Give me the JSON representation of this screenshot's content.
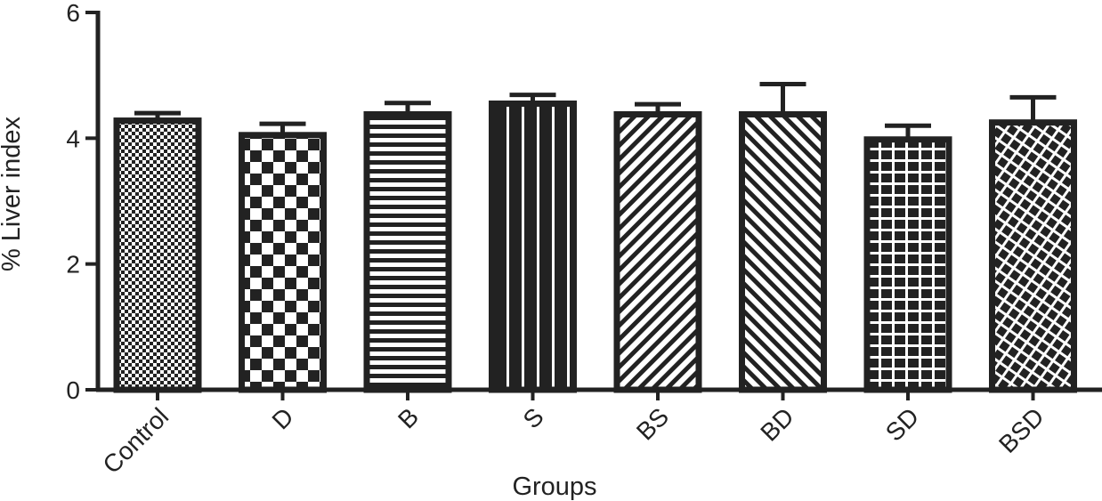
{
  "chart_data": {
    "type": "bar",
    "title": "",
    "xlabel": "Groups",
    "ylabel": "% Liver index",
    "ylim": [
      0,
      6
    ],
    "yticks": [
      0,
      2,
      4,
      6
    ],
    "grid": false,
    "categories": [
      "Control",
      "D",
      "B",
      "S",
      "BS",
      "BD",
      "SD",
      "BSD"
    ],
    "values": [
      4.28,
      4.05,
      4.38,
      4.55,
      4.38,
      4.38,
      3.98,
      4.25
    ],
    "error": [
      0.12,
      0.18,
      0.18,
      0.14,
      0.16,
      0.48,
      0.22,
      0.4
    ],
    "patterns": [
      "fine-checker",
      "large-checker",
      "horizontal-lines",
      "vertical-lines",
      "diagonal-forward",
      "diagonal-back",
      "grid",
      "crosshatch"
    ],
    "bar_color": "#222222",
    "background": "#ffffff"
  }
}
